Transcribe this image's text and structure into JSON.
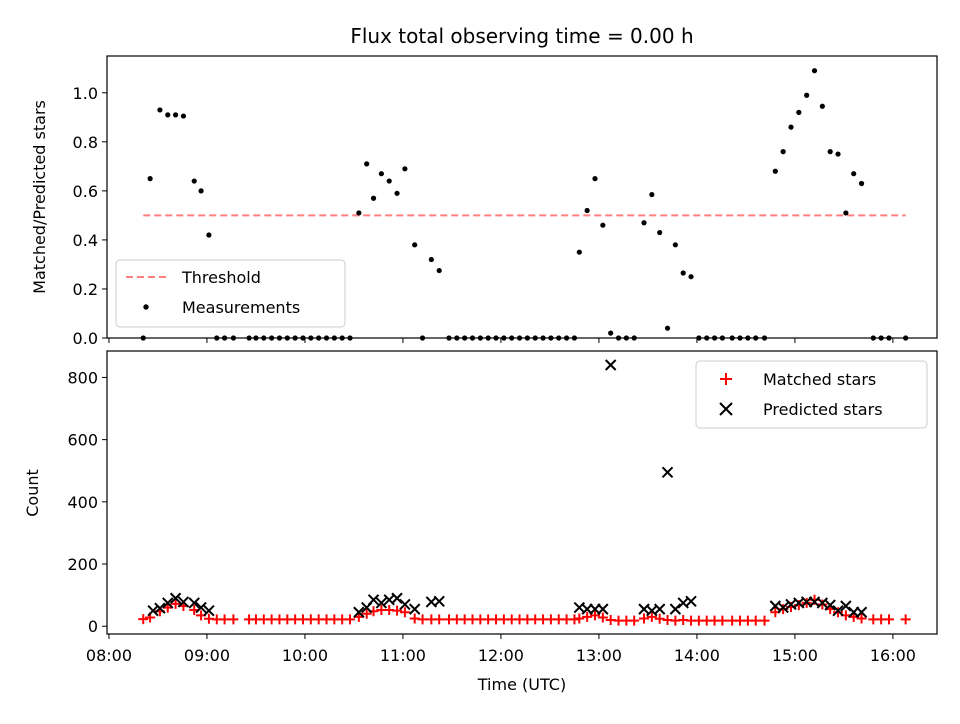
{
  "chart_data": {
    "title": "Flux total observing time = 0.00 h",
    "xlabel": "Time (UTC)",
    "x_tick_labels": [
      "08:00",
      "09:00",
      "10:00",
      "11:00",
      "12:00",
      "13:00",
      "14:00",
      "15:00",
      "16:00"
    ],
    "x_tick_hours": [
      8,
      9,
      10,
      11,
      12,
      13,
      14,
      15,
      16
    ],
    "xlim": [
      7.98,
      16.45
    ],
    "panels": [
      {
        "type": "scatter",
        "ylabel": "Matched/Predicted stars",
        "ylim": [
          0.0,
          1.15
        ],
        "y_ticks": [
          0.0,
          0.2,
          0.4,
          0.6,
          0.8,
          1.0
        ],
        "y_tick_labels": [
          "0.0",
          "0.2",
          "0.4",
          "0.6",
          "0.8",
          "1.0"
        ],
        "legend": {
          "position": "lower-left",
          "entries": [
            "Threshold",
            "Measurements"
          ]
        },
        "series": [
          {
            "name": "Threshold",
            "kind": "dashed-line",
            "color": "#ff7f7f",
            "x": [
              8.35,
              16.13
            ],
            "y": [
              0.5,
              0.5
            ]
          },
          {
            "name": "Measurements",
            "kind": "points",
            "color": "#000000",
            "points": [
              [
                8.35,
                0.0
              ],
              [
                8.42,
                0.65
              ],
              [
                8.52,
                0.93
              ],
              [
                8.6,
                0.91
              ],
              [
                8.68,
                0.91
              ],
              [
                8.76,
                0.905
              ],
              [
                8.87,
                0.64
              ],
              [
                8.94,
                0.6
              ],
              [
                9.02,
                0.42
              ],
              [
                9.1,
                0.0
              ],
              [
                9.18,
                0.0
              ],
              [
                9.27,
                0.0
              ],
              [
                9.43,
                0.0
              ],
              [
                9.5,
                0.0
              ],
              [
                9.58,
                0.0
              ],
              [
                9.66,
                0.0
              ],
              [
                9.74,
                0.0
              ],
              [
                9.82,
                0.0
              ],
              [
                9.9,
                0.0
              ],
              [
                9.98,
                0.0
              ],
              [
                10.06,
                0.0
              ],
              [
                10.14,
                0.0
              ],
              [
                10.22,
                0.0
              ],
              [
                10.3,
                0.0
              ],
              [
                10.38,
                0.0
              ],
              [
                10.46,
                0.0
              ],
              [
                10.55,
                0.51
              ],
              [
                10.63,
                0.71
              ],
              [
                10.7,
                0.57
              ],
              [
                10.78,
                0.67
              ],
              [
                10.86,
                0.64
              ],
              [
                10.94,
                0.59
              ],
              [
                11.02,
                0.69
              ],
              [
                11.12,
                0.38
              ],
              [
                11.2,
                0.0
              ],
              [
                11.29,
                0.32
              ],
              [
                11.37,
                0.275
              ],
              [
                11.47,
                0.0
              ],
              [
                11.55,
                0.0
              ],
              [
                11.63,
                0.0
              ],
              [
                11.71,
                0.0
              ],
              [
                11.79,
                0.0
              ],
              [
                11.87,
                0.0
              ],
              [
                11.95,
                0.0
              ],
              [
                12.03,
                0.0
              ],
              [
                12.11,
                0.0
              ],
              [
                12.19,
                0.0
              ],
              [
                12.27,
                0.0
              ],
              [
                12.35,
                0.0
              ],
              [
                12.43,
                0.0
              ],
              [
                12.51,
                0.0
              ],
              [
                12.59,
                0.0
              ],
              [
                12.67,
                0.0
              ],
              [
                12.75,
                0.0
              ],
              [
                12.8,
                0.35
              ],
              [
                12.88,
                0.52
              ],
              [
                12.96,
                0.65
              ],
              [
                13.04,
                0.46
              ],
              [
                13.12,
                0.02
              ],
              [
                13.2,
                0.0
              ],
              [
                13.28,
                0.0
              ],
              [
                13.36,
                0.0
              ],
              [
                13.46,
                0.47
              ],
              [
                13.54,
                0.585
              ],
              [
                13.62,
                0.43
              ],
              [
                13.7,
                0.04
              ],
              [
                13.78,
                0.38
              ],
              [
                13.86,
                0.265
              ],
              [
                13.94,
                0.25
              ],
              [
                14.02,
                0.0
              ],
              [
                14.1,
                0.0
              ],
              [
                14.18,
                0.0
              ],
              [
                14.26,
                0.0
              ],
              [
                14.36,
                0.0
              ],
              [
                14.44,
                0.0
              ],
              [
                14.52,
                0.0
              ],
              [
                14.6,
                0.0
              ],
              [
                14.69,
                0.0
              ],
              [
                14.8,
                0.68
              ],
              [
                14.88,
                0.76
              ],
              [
                14.96,
                0.86
              ],
              [
                15.04,
                0.92
              ],
              [
                15.12,
                0.99
              ],
              [
                15.2,
                1.09
              ],
              [
                15.28,
                0.945
              ],
              [
                15.36,
                0.76
              ],
              [
                15.44,
                0.75
              ],
              [
                15.52,
                0.51
              ],
              [
                15.6,
                0.67
              ],
              [
                15.68,
                0.63
              ],
              [
                15.8,
                0.0
              ],
              [
                15.88,
                0.0
              ],
              [
                15.96,
                0.0
              ],
              [
                16.13,
                0.0
              ]
            ]
          }
        ]
      },
      {
        "type": "scatter",
        "ylabel": "Count",
        "xlabel": "Time (UTC)",
        "ylim": [
          -25,
          885
        ],
        "y_ticks": [
          0,
          200,
          400,
          600,
          800
        ],
        "y_tick_labels": [
          "0",
          "200",
          "400",
          "600",
          "800"
        ],
        "legend": {
          "position": "upper-right",
          "entries": [
            "Matched stars",
            "Predicted stars"
          ]
        },
        "series": [
          {
            "name": "Matched stars",
            "marker": "plus",
            "color": "#ff0000",
            "points": [
              [
                8.35,
                23
              ],
              [
                8.42,
                28
              ],
              [
                8.52,
                48
              ],
              [
                8.6,
                60
              ],
              [
                8.68,
                72
              ],
              [
                8.76,
                65
              ],
              [
                8.87,
                52
              ],
              [
                8.94,
                35
              ],
              [
                9.02,
                24
              ],
              [
                9.1,
                22
              ],
              [
                9.18,
                22
              ],
              [
                9.27,
                22
              ],
              [
                9.43,
                22
              ],
              [
                9.5,
                22
              ],
              [
                9.58,
                22
              ],
              [
                9.66,
                22
              ],
              [
                9.74,
                22
              ],
              [
                9.82,
                22
              ],
              [
                9.9,
                22
              ],
              [
                9.98,
                22
              ],
              [
                10.06,
                22
              ],
              [
                10.14,
                22
              ],
              [
                10.22,
                22
              ],
              [
                10.3,
                22
              ],
              [
                10.38,
                22
              ],
              [
                10.46,
                22
              ],
              [
                10.55,
                30
              ],
              [
                10.63,
                40
              ],
              [
                10.7,
                48
              ],
              [
                10.78,
                52
              ],
              [
                10.86,
                52
              ],
              [
                10.94,
                50
              ],
              [
                11.02,
                45
              ],
              [
                11.12,
                25
              ],
              [
                11.2,
                22
              ],
              [
                11.29,
                22
              ],
              [
                11.37,
                22
              ],
              [
                11.47,
                22
              ],
              [
                11.55,
                22
              ],
              [
                11.63,
                22
              ],
              [
                11.71,
                22
              ],
              [
                11.79,
                22
              ],
              [
                11.87,
                22
              ],
              [
                11.95,
                22
              ],
              [
                12.03,
                22
              ],
              [
                12.11,
                22
              ],
              [
                12.19,
                22
              ],
              [
                12.27,
                22
              ],
              [
                12.35,
                22
              ],
              [
                12.43,
                22
              ],
              [
                12.51,
                22
              ],
              [
                12.59,
                22
              ],
              [
                12.67,
                22
              ],
              [
                12.75,
                22
              ],
              [
                12.8,
                25
              ],
              [
                12.88,
                30
              ],
              [
                12.96,
                35
              ],
              [
                13.04,
                28
              ],
              [
                13.12,
                20
              ],
              [
                13.2,
                18
              ],
              [
                13.28,
                18
              ],
              [
                13.36,
                18
              ],
              [
                13.46,
                25
              ],
              [
                13.54,
                30
              ],
              [
                13.62,
                24
              ],
              [
                13.7,
                20
              ],
              [
                13.78,
                18
              ],
              [
                13.86,
                20
              ],
              [
                13.94,
                18
              ],
              [
                14.02,
                18
              ],
              [
                14.1,
                18
              ],
              [
                14.18,
                18
              ],
              [
                14.26,
                18
              ],
              [
                14.36,
                18
              ],
              [
                14.44,
                18
              ],
              [
                14.52,
                18
              ],
              [
                14.6,
                18
              ],
              [
                14.69,
                18
              ],
              [
                14.8,
                45
              ],
              [
                14.88,
                55
              ],
              [
                14.96,
                62
              ],
              [
                15.04,
                68
              ],
              [
                15.12,
                75
              ],
              [
                15.2,
                85
              ],
              [
                15.28,
                70
              ],
              [
                15.36,
                55
              ],
              [
                15.44,
                45
              ],
              [
                15.52,
                35
              ],
              [
                15.6,
                30
              ],
              [
                15.68,
                25
              ],
              [
                15.8,
                22
              ],
              [
                15.88,
                22
              ],
              [
                15.96,
                22
              ],
              [
                16.13,
                22
              ]
            ]
          },
          {
            "name": "Predicted stars",
            "marker": "x",
            "color": "#000000",
            "points": [
              [
                8.45,
                50
              ],
              [
                8.52,
                58
              ],
              [
                8.6,
                75
              ],
              [
                8.68,
                90
              ],
              [
                8.76,
                78
              ],
              [
                8.87,
                75
              ],
              [
                8.94,
                60
              ],
              [
                9.02,
                50
              ],
              [
                10.55,
                45
              ],
              [
                10.63,
                60
              ],
              [
                10.7,
                85
              ],
              [
                10.78,
                75
              ],
              [
                10.86,
                85
              ],
              [
                10.94,
                90
              ],
              [
                11.02,
                70
              ],
              [
                11.12,
                55
              ],
              [
                11.29,
                78
              ],
              [
                11.37,
                80
              ],
              [
                12.8,
                60
              ],
              [
                12.88,
                55
              ],
              [
                12.96,
                55
              ],
              [
                13.04,
                55
              ],
              [
                13.12,
                840
              ],
              [
                13.46,
                55
              ],
              [
                13.54,
                50
              ],
              [
                13.62,
                55
              ],
              [
                13.7,
                495
              ],
              [
                13.78,
                55
              ],
              [
                13.86,
                75
              ],
              [
                13.94,
                80
              ],
              [
                14.8,
                65
              ],
              [
                14.88,
                60
              ],
              [
                14.96,
                70
              ],
              [
                15.04,
                75
              ],
              [
                15.12,
                78
              ],
              [
                15.2,
                78
              ],
              [
                15.28,
                75
              ],
              [
                15.36,
                68
              ],
              [
                15.44,
                50
              ],
              [
                15.52,
                65
              ],
              [
                15.6,
                45
              ],
              [
                15.68,
                45
              ]
            ]
          }
        ]
      }
    ]
  }
}
